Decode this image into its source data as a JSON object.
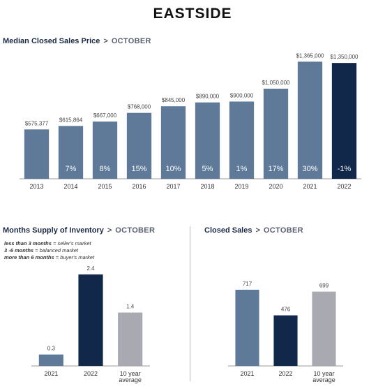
{
  "page": {
    "title": "EASTSIDE"
  },
  "sections": {
    "price": {
      "title": "Median Closed Sales Price",
      "separator": ">",
      "subtitle": "OCTOBER"
    },
    "inventory": {
      "title": "Months Supply of Inventory",
      "separator": ">",
      "subtitle": "OCTOBER"
    },
    "sales": {
      "title": "Closed Sales",
      "separator": ">",
      "subtitle": "OCTOBER"
    }
  },
  "inventory_legend": [
    {
      "bold": "less than 3 months",
      "rest": " = seller's market"
    },
    {
      "bold": "3 -6 months",
      "rest": " = balanced market"
    },
    {
      "bold": "more than 6 months",
      "rest": " = buyer's market"
    }
  ],
  "colors": {
    "steel": "#5f7a99",
    "navy": "#11284b",
    "gray": "#a9a9b1",
    "axis": "#999999"
  },
  "chart_data": [
    {
      "id": "median-price",
      "type": "bar",
      "categories": [
        "2013",
        "2014",
        "2015",
        "2016",
        "2017",
        "2018",
        "2019",
        "2020",
        "2021",
        "2022"
      ],
      "values": [
        575377,
        615864,
        667000,
        768000,
        845000,
        890000,
        900000,
        1050000,
        1365000,
        1350000
      ],
      "value_labels": [
        "$575,377",
        "$615,864",
        "$667,000",
        "$768,000",
        "$845,000",
        "$890,000",
        "$900,000",
        "$1,050,000",
        "$1,365,000",
        "$1,350,000"
      ],
      "change_labels": [
        "",
        "7%",
        "8%",
        "15%",
        "10%",
        "5%",
        "1%",
        "17%",
        "30%",
        "-1%"
      ],
      "bar_colors": [
        "steel",
        "steel",
        "steel",
        "steel",
        "steel",
        "steel",
        "steel",
        "steel",
        "steel",
        "navy"
      ],
      "ylim": [
        0,
        1400000
      ],
      "grid": false
    },
    {
      "id": "months-supply",
      "type": "bar",
      "categories": [
        [
          "2021"
        ],
        [
          "2022"
        ],
        [
          "10 year",
          "average"
        ]
      ],
      "values": [
        0.3,
        2.4,
        1.4
      ],
      "value_labels": [
        "0.3",
        "2.4",
        "1.4"
      ],
      "bar_colors": [
        "steel",
        "navy",
        "gray"
      ],
      "ylim": [
        0,
        2.6
      ],
      "grid": false
    },
    {
      "id": "closed-sales",
      "type": "bar",
      "categories": [
        [
          "2021"
        ],
        [
          "2022"
        ],
        [
          "10 year",
          "average"
        ]
      ],
      "values": [
        717,
        476,
        699
      ],
      "value_labels": [
        "717",
        "476",
        "699"
      ],
      "bar_colors": [
        "steel",
        "navy",
        "gray"
      ],
      "ylim": [
        0,
        900
      ],
      "grid": false
    }
  ]
}
